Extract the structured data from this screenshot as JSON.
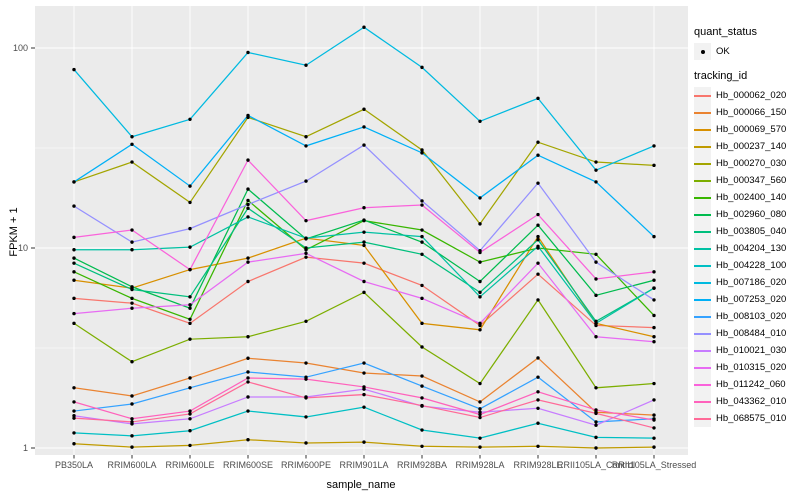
{
  "chart_data": {
    "type": "line",
    "title": "",
    "xlabel": "sample_name",
    "ylabel": "FPKM + 1",
    "y_scale": "log10",
    "y_ticks": [
      100,
      10,
      1
    ],
    "y_minor_ticks": [
      31.62,
      3.162
    ],
    "ylim": [
      0.95,
      162
    ],
    "grid": true,
    "legend_position": "right",
    "marker": {
      "shape": "point",
      "color": "#000000"
    },
    "legend": {
      "quant_status_title": "quant_status",
      "ok_label": "OK",
      "tracking_title": "tracking_id"
    },
    "categories": [
      "PB350LA",
      "RRIM600LA",
      "RRIM600LE",
      "RRIM600SE",
      "RRIM600PE",
      "RRIM901LA",
      "RRIM928BA",
      "RRIM928LA",
      "RRIM928LE",
      "RRII105LA_Control",
      "RRII105LA_Stressed"
    ],
    "series": [
      {
        "name": "Hb_000062_020",
        "color": "#F8766D",
        "values": [
          5.6,
          5.3,
          4.2,
          6.8,
          9.0,
          8.4,
          6.5,
          4.1,
          7.4,
          4.1,
          4.0
        ]
      },
      {
        "name": "Hb_000066_150",
        "color": "#EA8331",
        "values": [
          2.0,
          1.82,
          2.24,
          2.81,
          2.66,
          2.37,
          2.29,
          1.7,
          2.82,
          1.51,
          1.46
        ]
      },
      {
        "name": "Hb_000069_570",
        "color": "#D89000",
        "values": [
          6.9,
          6.3,
          7.8,
          8.9,
          11.2,
          10.3,
          4.2,
          3.9,
          11.4,
          4.2,
          3.6
        ]
      },
      {
        "name": "Hb_000237_140",
        "color": "#C09B00",
        "values": [
          1.05,
          1.01,
          1.03,
          1.1,
          1.06,
          1.07,
          1.02,
          1.01,
          1.02,
          1.0,
          1.01
        ]
      },
      {
        "name": "Hb_000270_030",
        "color": "#A3A500",
        "values": [
          21.4,
          26.9,
          16.9,
          45.0,
          36.0,
          49.4,
          30.9,
          13.2,
          33.8,
          26.9,
          25.9
        ]
      },
      {
        "name": "Hb_000347_560",
        "color": "#7CAE00",
        "values": [
          4.2,
          2.7,
          3.5,
          3.6,
          4.3,
          6.0,
          3.2,
          2.1,
          5.5,
          2.0,
          2.1
        ]
      },
      {
        "name": "Hb_002400_140",
        "color": "#39B600",
        "values": [
          7.6,
          5.6,
          4.4,
          17.3,
          9.8,
          13.7,
          12.3,
          8.5,
          10.0,
          9.3,
          4.6
        ]
      },
      {
        "name": "Hb_002960_080",
        "color": "#00BB4E",
        "values": [
          8.9,
          6.4,
          5.0,
          19.7,
          11.1,
          13.8,
          10.7,
          6.8,
          13.0,
          5.8,
          6.9
        ]
      },
      {
        "name": "Hb_003805_040",
        "color": "#00BF7D",
        "values": [
          8.4,
          6.2,
          5.7,
          15.8,
          10.0,
          10.7,
          9.3,
          6.0,
          11.0,
          4.3,
          6.3
        ]
      },
      {
        "name": "Hb_004204_130",
        "color": "#00C1A3",
        "values": [
          9.8,
          9.8,
          10.1,
          14.3,
          11.2,
          12.0,
          11.4,
          5.7,
          10.2,
          4.2,
          6.3
        ]
      },
      {
        "name": "Hb_004228_100",
        "color": "#00BFC4",
        "values": [
          1.19,
          1.15,
          1.22,
          1.53,
          1.43,
          1.6,
          1.23,
          1.12,
          1.33,
          1.13,
          1.12
        ]
      },
      {
        "name": "Hb_007186_020",
        "color": "#00BAE0",
        "values": [
          78,
          36,
          44,
          95,
          82,
          127,
          80,
          43,
          56,
          24.5,
          32.4
        ]
      },
      {
        "name": "Hb_007253_020",
        "color": "#00B0F6",
        "values": [
          21.4,
          33,
          20.4,
          46,
          32.4,
          40.3,
          29.9,
          17.8,
          29.1,
          21.4,
          11.4
        ]
      },
      {
        "name": "Hb_008103_020",
        "color": "#35A2FF",
        "values": [
          1.53,
          1.66,
          2.0,
          2.4,
          2.26,
          2.66,
          2.04,
          1.57,
          2.26,
          1.35,
          1.4
        ]
      },
      {
        "name": "Hb_008484_010",
        "color": "#9590FF",
        "values": [
          16.2,
          10.7,
          12.5,
          16.5,
          21.6,
          32.7,
          17.2,
          9.7,
          21.1,
          8.5,
          5.5
        ]
      },
      {
        "name": "Hb_010021_030",
        "color": "#C77CFF",
        "values": [
          1.45,
          1.32,
          1.4,
          1.8,
          1.8,
          1.97,
          1.62,
          1.51,
          1.58,
          1.3,
          1.74
        ]
      },
      {
        "name": "Hb_010315_020",
        "color": "#E76BF3",
        "values": [
          4.7,
          5.0,
          5.2,
          8.5,
          9.4,
          6.8,
          5.6,
          4.2,
          8.4,
          3.6,
          3.4
        ]
      },
      {
        "name": "Hb_011242_060",
        "color": "#FA62DB",
        "values": [
          11.3,
          12.3,
          7.8,
          27.5,
          13.7,
          15.9,
          16.4,
          9.5,
          14.7,
          7.0,
          7.6
        ]
      },
      {
        "name": "Hb_043362_010",
        "color": "#FF62BC",
        "values": [
          1.7,
          1.4,
          1.53,
          2.24,
          2.21,
          2.02,
          1.78,
          1.47,
          1.91,
          1.55,
          1.38
        ]
      },
      {
        "name": "Hb_068575_010",
        "color": "#FF6A98",
        "values": [
          1.41,
          1.35,
          1.48,
          2.14,
          1.78,
          1.85,
          1.63,
          1.42,
          1.74,
          1.49,
          1.26
        ]
      }
    ]
  },
  "colors": {
    "panel_bg": "#EBEBEB",
    "grid": "#FFFFFF",
    "tick_text": "#4D4D4D",
    "tick_mark": "#333333",
    "key_bg": "#F2F2F2",
    "point": "#000000"
  }
}
